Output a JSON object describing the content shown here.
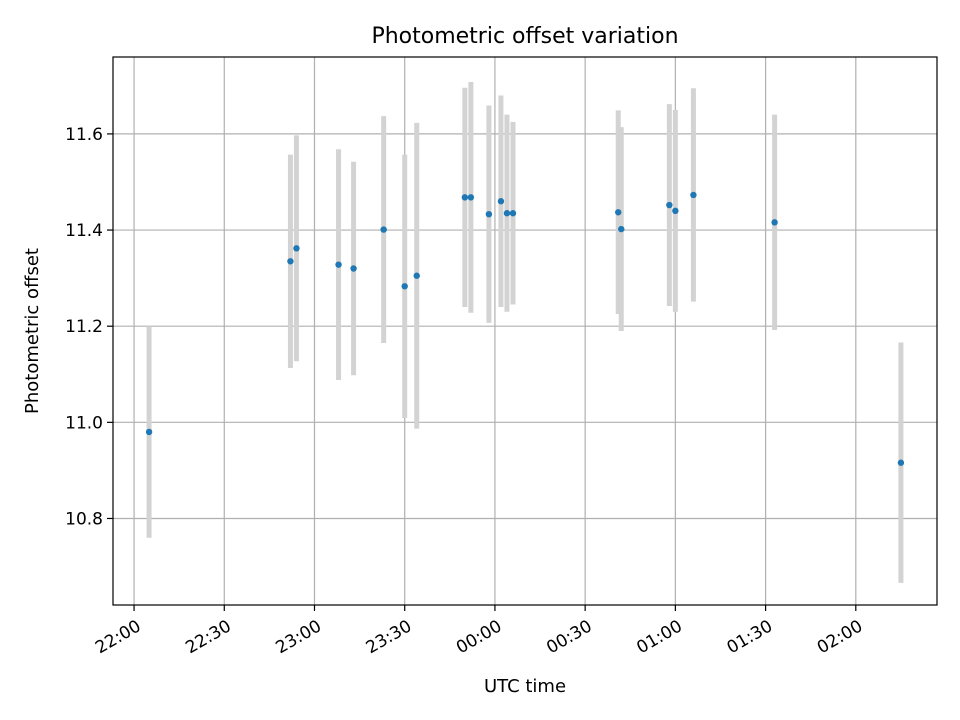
{
  "chart_data": {
    "type": "scatter",
    "title": "Photometric offset variation",
    "xlabel": "UTC time",
    "ylabel": "Photometric offset",
    "grid": true,
    "x_ticks": [
      "22:00",
      "22:30",
      "23:00",
      "23:30",
      "00:00",
      "00:30",
      "01:00",
      "01:30",
      "02:00"
    ],
    "y_ticks": [
      "10.8",
      "11.0",
      "11.2",
      "11.4",
      "11.6"
    ],
    "ylim": [
      10.62,
      11.76
    ],
    "xlim": [
      "21:53",
      "02:27"
    ],
    "colors": {
      "point": "#1f77b4",
      "errorbar": "#d3d3d3",
      "grid": "#b0b0b0"
    },
    "points": [
      {
        "x": "22:05",
        "y": 10.98,
        "yerr": 0.22
      },
      {
        "x": "22:52",
        "y": 11.335,
        "yerr": 0.222
      },
      {
        "x": "22:54",
        "y": 11.362,
        "yerr": 0.235
      },
      {
        "x": "23:08",
        "y": 11.328,
        "yerr": 0.24
      },
      {
        "x": "23:13",
        "y": 11.32,
        "yerr": 0.222
      },
      {
        "x": "23:23",
        "y": 11.401,
        "yerr": 0.236
      },
      {
        "x": "23:30",
        "y": 11.283,
        "yerr": 0.274
      },
      {
        "x": "23:34",
        "y": 11.305,
        "yerr": 0.318
      },
      {
        "x": "23:50",
        "y": 11.468,
        "yerr": 0.228
      },
      {
        "x": "23:52",
        "y": 11.468,
        "yerr": 0.24
      },
      {
        "x": "23:58",
        "y": 11.433,
        "yerr": 0.226
      },
      {
        "x": "00:02",
        "y": 11.46,
        "yerr": 0.22
      },
      {
        "x": "00:04",
        "y": 11.435,
        "yerr": 0.205
      },
      {
        "x": "00:06",
        "y": 11.435,
        "yerr": 0.19
      },
      {
        "x": "00:41",
        "y": 11.437,
        "yerr": 0.212
      },
      {
        "x": "00:42",
        "y": 11.402,
        "yerr": 0.212
      },
      {
        "x": "00:58",
        "y": 11.452,
        "yerr": 0.21
      },
      {
        "x": "01:00",
        "y": 11.44,
        "yerr": 0.21
      },
      {
        "x": "01:06",
        "y": 11.473,
        "yerr": 0.222
      },
      {
        "x": "01:33",
        "y": 11.416,
        "yerr": 0.224
      },
      {
        "x": "02:15",
        "y": 10.916,
        "yerr": 0.25
      }
    ]
  }
}
